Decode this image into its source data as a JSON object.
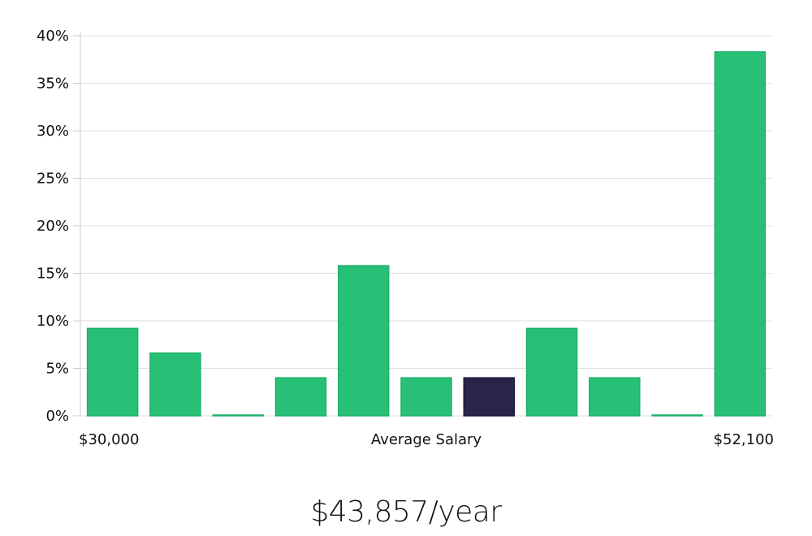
{
  "chart_data": {
    "type": "bar",
    "title": "",
    "xlabel": "Average Salary",
    "ylabel": "",
    "x_range_labels": {
      "min": "$30,000",
      "max": "$52,100"
    },
    "ylim": [
      0,
      40
    ],
    "y_ticks": [
      0,
      5,
      10,
      15,
      20,
      25,
      30,
      35,
      40
    ],
    "y_tick_suffix": "%",
    "grid": true,
    "values": [
      9.2,
      6.6,
      0,
      4.0,
      15.8,
      4.0,
      4.0,
      9.2,
      4.0,
      0,
      38.3
    ],
    "highlight_index": 6,
    "colors": {
      "bar": "#28bf76",
      "bar_stroke": "#1fb06a",
      "highlight": "#2a2448",
      "highlight_stroke": "#1a1440",
      "grid": "#dddddd",
      "axis": "#cccccc"
    }
  },
  "summary": {
    "value": "$43,857/year"
  }
}
